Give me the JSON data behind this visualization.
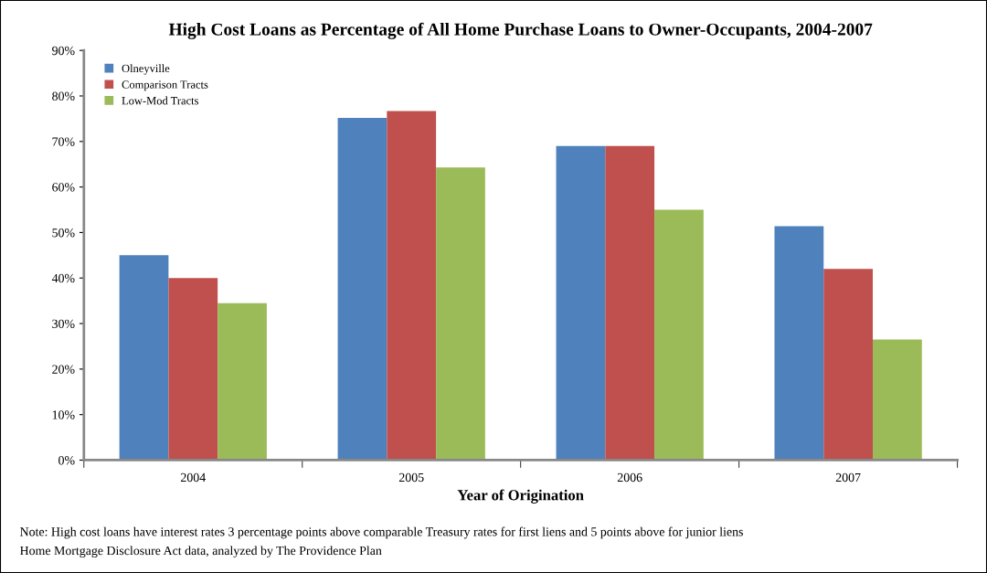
{
  "chart_data": {
    "type": "bar",
    "title": "High Cost Loans as Percentage of All Home Purchase Loans to Owner-Occupants, 2004-2007",
    "xlabel": "Year of Origination",
    "categories": [
      "2004",
      "2005",
      "2006",
      "2007"
    ],
    "series": [
      {
        "name": "Olneyville",
        "color": "#4f81bd",
        "values": [
          45,
          75.2,
          69,
          51.4
        ]
      },
      {
        "name": "Comparison Tracts",
        "color": "#c0504d",
        "values": [
          40,
          76.7,
          69,
          42
        ]
      },
      {
        "name": "Low-Mod Tracts",
        "color": "#9bbb59",
        "values": [
          34.5,
          64.3,
          55,
          26.5
        ]
      }
    ],
    "ylim": [
      0,
      90
    ],
    "yticks": [
      {
        "value": 0,
        "label": "0%"
      },
      {
        "value": 10,
        "label": "10%"
      },
      {
        "value": 20,
        "label": "20%"
      },
      {
        "value": 30,
        "label": "30%"
      },
      {
        "value": 40,
        "label": "40%"
      },
      {
        "value": 50,
        "label": "50%"
      },
      {
        "value": 60,
        "label": "60%"
      },
      {
        "value": 70,
        "label": "70%"
      },
      {
        "value": 80,
        "label": "80%"
      },
      {
        "value": 90,
        "label": "90%"
      }
    ],
    "grid": false,
    "legend": "top left",
    "annotations": [
      "Note: High cost loans have interest rates 3 percentage points above comparable Treasury rates for first liens and 5 points above for junior liens",
      "Home Mortgage Disclosure Act data, analyzed by The Providence Plan"
    ]
  }
}
